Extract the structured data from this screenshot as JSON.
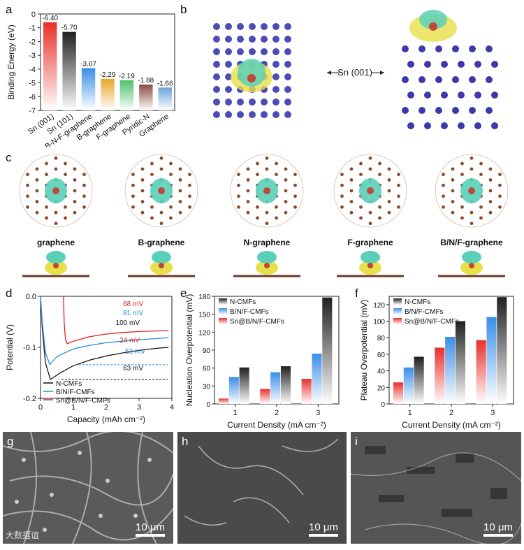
{
  "panel_labels": {
    "a": "a",
    "b": "b",
    "c": "c",
    "d": "d",
    "e": "e",
    "f": "f",
    "g": "g",
    "h": "h",
    "i": "i"
  },
  "panel_b": {
    "arrow_label": "Sn (001)"
  },
  "panel_c": {
    "structures": [
      "graphene",
      "B-graphene",
      "N-graphene",
      "F-graphene",
      "B/N/F-graphene"
    ]
  },
  "scale_bar": "10 μm",
  "watermark": "大数据谊",
  "colors": {
    "red": "#e8302a",
    "black": "#202020",
    "blue": "#3a8ee8",
    "orange": "#e8a62a",
    "green": "#4cc06a",
    "brown": "#8a4a40",
    "steel": "#6aa6d8"
  },
  "chart_data": [
    {
      "id": "a",
      "type": "bar",
      "ylabel": "Binding Energy (eV)",
      "ylim": [
        -7,
        0
      ],
      "yticks": [
        "-7",
        "-6",
        "-5",
        "-4",
        "-3",
        "-2",
        "-1",
        "0"
      ],
      "categories": [
        "Sn (001)",
        "Sn (101)",
        "B-N-F-graphene",
        "B-graphene",
        "F-graphene",
        "Pyridic-N",
        "Graphene"
      ],
      "values": [
        -6.4,
        -5.7,
        -3.07,
        -2.29,
        -2.19,
        -1.88,
        -1.66
      ],
      "value_labels": [
        "-6.40",
        "-5.70",
        "-3.07",
        "-2.29",
        "-2.19",
        "-1.88",
        "-1.66"
      ]
    },
    {
      "id": "d",
      "type": "line",
      "xlabel": "Capacity (mAh cm⁻²)",
      "ylabel": "Potential (V)",
      "xlim": [
        0,
        4
      ],
      "ylim": [
        -0.2,
        0.0
      ],
      "xticks": [
        "0",
        "1",
        "2",
        "3",
        "4"
      ],
      "yticks": [
        "-0.2",
        "-0.1",
        "0.0"
      ],
      "series": [
        {
          "name": "N-CMFs",
          "color": "#111111",
          "x": [
            0,
            0.05,
            0.15,
            0.3,
            0.6,
            1,
            1.5,
            2,
            2.5,
            3,
            3.5,
            3.9
          ],
          "y": [
            0,
            -0.06,
            -0.13,
            -0.163,
            -0.15,
            -0.136,
            -0.125,
            -0.117,
            -0.111,
            -0.106,
            -0.102,
            -0.1
          ]
        },
        {
          "name": "B/N/F-CMFs",
          "color": "#2a8ad8",
          "x": [
            0,
            0.05,
            0.15,
            0.28,
            0.5,
            1,
            1.5,
            2,
            2.5,
            3,
            3.5,
            3.9
          ],
          "y": [
            0,
            -0.05,
            -0.11,
            -0.134,
            -0.118,
            -0.103,
            -0.096,
            -0.091,
            -0.088,
            -0.085,
            -0.083,
            -0.081
          ]
        },
        {
          "name": "Sn@B/N/F-CMFs",
          "color": "#e02020",
          "x": [
            0.7,
            0.72,
            0.76,
            0.82,
            1,
            1.5,
            2,
            2.5,
            3,
            3.5,
            3.9
          ],
          "y": [
            0,
            -0.05,
            -0.085,
            -0.093,
            -0.088,
            -0.079,
            -0.074,
            -0.071,
            -0.069,
            -0.068,
            -0.067
          ]
        }
      ],
      "annotations": [
        "68 mV",
        "81 mV",
        "100 mV",
        "24 mV",
        "53 mV",
        "63 mV"
      ]
    },
    {
      "id": "e",
      "type": "bar",
      "xlabel": "Current Density (mA cm⁻²)",
      "ylabel": "Nucleation Overpotential (mV)",
      "ylim": [
        0,
        180
      ],
      "yticks": [
        "0",
        "30",
        "60",
        "90",
        "120",
        "150",
        "180"
      ],
      "categories": [
        "1",
        "2",
        "3"
      ],
      "series": [
        {
          "name": "Sn@B/N/F-CMFs",
          "color": "#e8302a",
          "values": [
            9,
            25,
            42
          ]
        },
        {
          "name": "B/N/F-CMFs",
          "color": "#3a8ee8",
          "values": [
            45,
            53,
            84
          ]
        },
        {
          "name": "N-CMFs",
          "color": "#202020",
          "values": [
            61,
            63,
            178
          ]
        }
      ]
    },
    {
      "id": "f",
      "type": "bar",
      "xlabel": "Current Density (mA cm⁻²)",
      "ylabel": "Plateau Overpotential (mV)",
      "ylim": [
        0,
        130
      ],
      "yticks": [
        "0",
        "20",
        "40",
        "60",
        "80",
        "100",
        "120"
      ],
      "categories": [
        "1",
        "2",
        "3"
      ],
      "series": [
        {
          "name": "Sn@B/N/F-CMFs",
          "color": "#e8302a",
          "values": [
            26,
            68,
            77
          ]
        },
        {
          "name": "B/N/F-CMFs",
          "color": "#3a8ee8",
          "values": [
            44,
            81,
            105
          ]
        },
        {
          "name": "N-CMFs",
          "color": "#202020",
          "values": [
            57,
            100,
            129
          ]
        }
      ]
    }
  ]
}
